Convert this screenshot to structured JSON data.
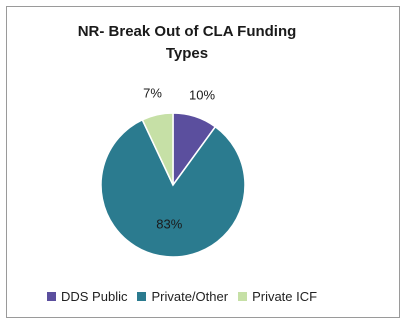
{
  "chart_data": {
    "type": "pie",
    "title_line1": "NR-  Break Out of CLA Funding",
    "title_line2": "Types",
    "slices": [
      {
        "label": "DDS Public",
        "value": 10,
        "display": "10%",
        "color": "#5b4f9e"
      },
      {
        "label": "Private/Other",
        "value": 83,
        "display": "83%",
        "color": "#2b7b8f"
      },
      {
        "label": "Private ICF",
        "value": 7,
        "display": "7%",
        "color": "#c6e0a6"
      }
    ],
    "legend_position": "bottom"
  }
}
